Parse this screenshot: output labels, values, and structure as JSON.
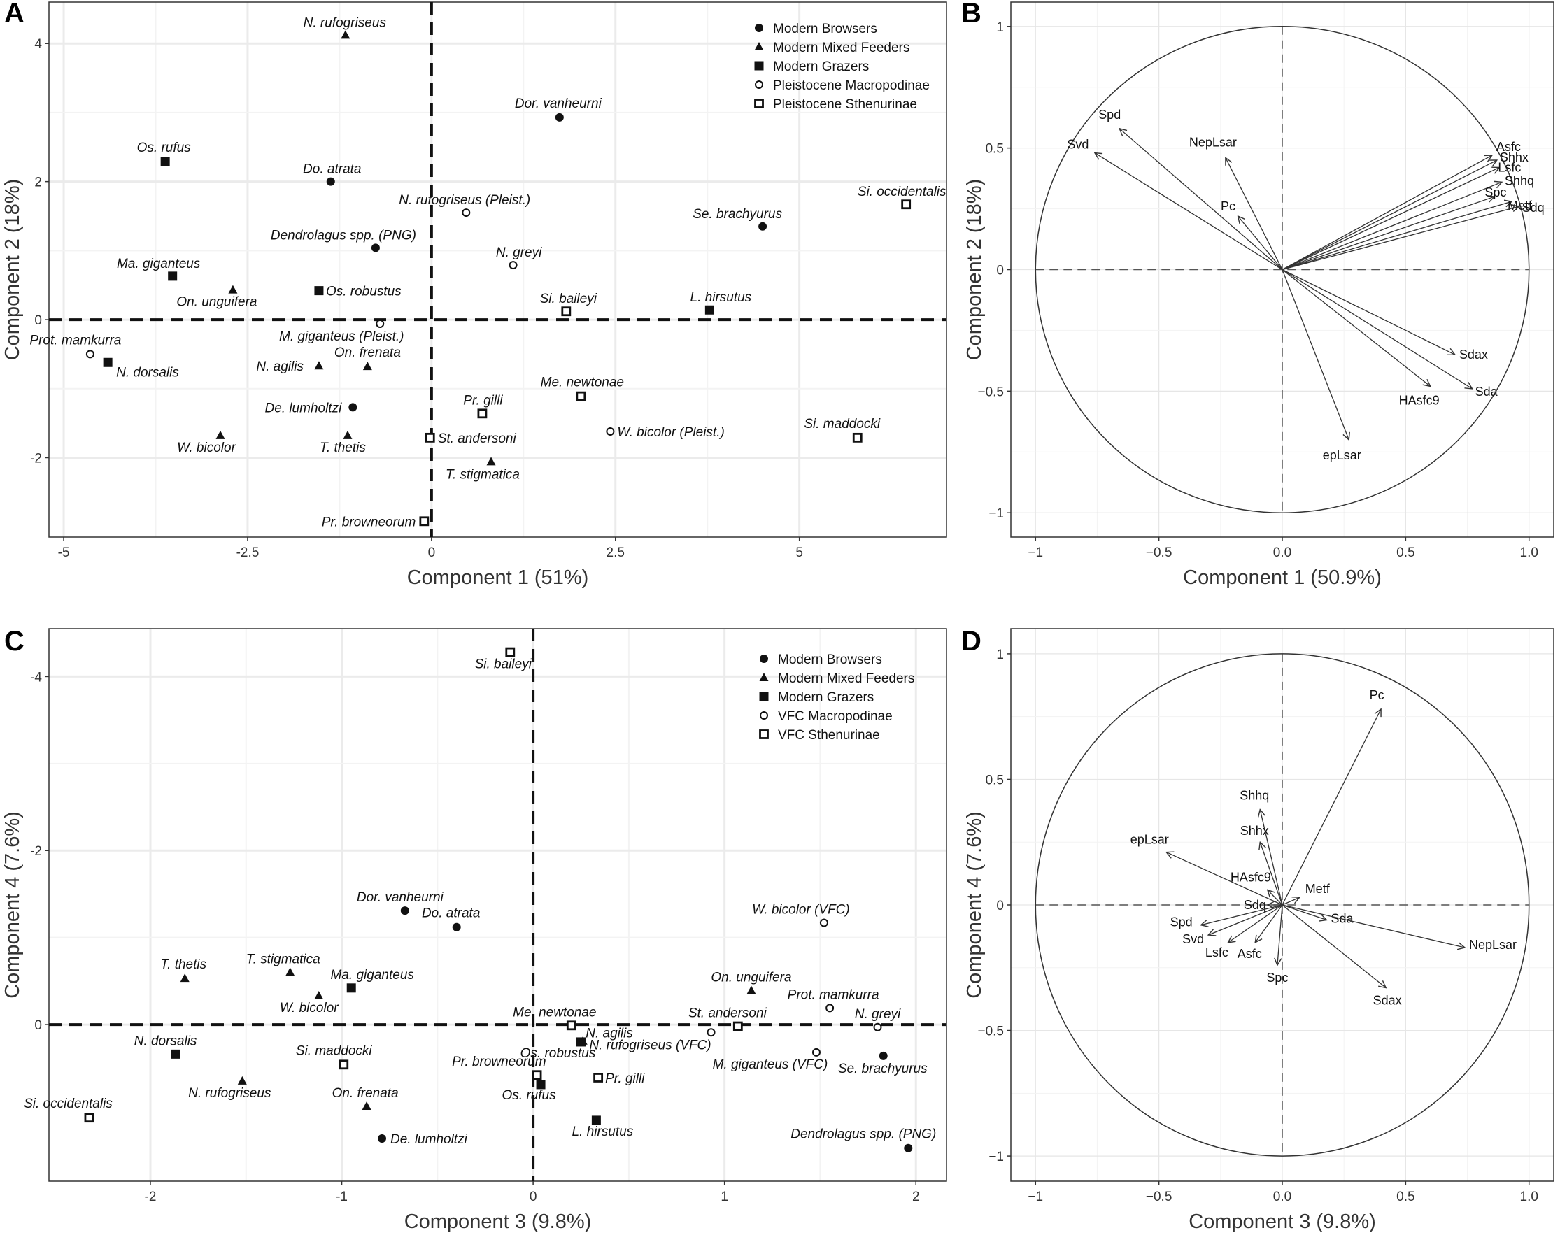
{
  "chart_data": [
    {
      "panel": "A",
      "type": "scatter",
      "xlabel": "Component 1 (51%)",
      "ylabel": "Component 2 (18%)",
      "xlim": [
        -5.2,
        7.0
      ],
      "ylim": [
        -3.15,
        4.6
      ],
      "xticks": [
        {
          "v": -5,
          "t": "-5"
        },
        {
          "v": -2.5,
          "t": "-2.5"
        },
        {
          "v": 0,
          "t": "0"
        },
        {
          "v": 2.5,
          "t": "2.5"
        },
        {
          "v": 5,
          "t": "5"
        }
      ],
      "yticks": [
        {
          "v": -2,
          "t": "-2"
        },
        {
          "v": 0,
          "t": "0"
        },
        {
          "v": 2,
          "t": "2"
        },
        {
          "v": 4,
          "t": "4"
        }
      ],
      "legend": [
        {
          "shape": "circle",
          "label": "Modern Browsers"
        },
        {
          "shape": "triangle",
          "label": "Modern Mixed Feeders"
        },
        {
          "shape": "square",
          "label": "Modern Grazers"
        },
        {
          "shape": "open-circle",
          "label": "Pleistocene Macropodinae"
        },
        {
          "shape": "open-square",
          "label": "Pleistocene Sthenurinae"
        }
      ],
      "points": [
        {
          "label": "N. rufogriseus",
          "x": -1.17,
          "y": 4.12,
          "shape": "triangle"
        },
        {
          "label": "Dor. vanheurni",
          "x": 1.74,
          "y": 2.93,
          "shape": "circle"
        },
        {
          "label": "Os. rufus",
          "x": -3.62,
          "y": 2.29,
          "shape": "square"
        },
        {
          "label": "Do. atrata",
          "x": -1.37,
          "y": 2.0,
          "shape": "circle"
        },
        {
          "label": "N. rufogriseus (Pleist.)",
          "x": 0.47,
          "y": 1.55,
          "shape": "open-circle"
        },
        {
          "label": "Si. occidentalis",
          "x": 6.45,
          "y": 1.67,
          "shape": "open-square"
        },
        {
          "label": "Se. brachyurus",
          "x": 4.5,
          "y": 1.35,
          "shape": "circle"
        },
        {
          "label": "Dendrolagus spp. (PNG)",
          "x": -0.76,
          "y": 1.04,
          "shape": "circle"
        },
        {
          "label": "N. greyi",
          "x": 1.11,
          "y": 0.79,
          "shape": "open-circle"
        },
        {
          "label": "Ma. giganteus",
          "x": -3.52,
          "y": 0.63,
          "shape": "square"
        },
        {
          "label": "On. unguifera",
          "x": -2.7,
          "y": 0.43,
          "shape": "triangle"
        },
        {
          "label": "Os. robustus",
          "x": -1.53,
          "y": 0.42,
          "shape": "square"
        },
        {
          "label": "Si. baileyi",
          "x": 1.83,
          "y": 0.12,
          "shape": "open-square"
        },
        {
          "label": "L. hirsutus",
          "x": 3.78,
          "y": 0.14,
          "shape": "square"
        },
        {
          "label": "M. giganteus (Pleist.)",
          "x": -0.7,
          "y": -0.06,
          "shape": "open-circle"
        },
        {
          "label": "Prot. mamkurra",
          "x": -4.64,
          "y": -0.5,
          "shape": "open-circle"
        },
        {
          "label": "N. dorsalis",
          "x": -4.4,
          "y": -0.62,
          "shape": "square"
        },
        {
          "label": "N. agilis",
          "x": -1.53,
          "y": -0.67,
          "shape": "triangle"
        },
        {
          "label": "On. frenata",
          "x": -0.87,
          "y": -0.68,
          "shape": "triangle"
        },
        {
          "label": "Me. newtonae",
          "x": 2.03,
          "y": -1.11,
          "shape": "open-square"
        },
        {
          "label": "De. lumholtzi",
          "x": -1.07,
          "y": -1.27,
          "shape": "circle"
        },
        {
          "label": "Pr. gilli",
          "x": 0.69,
          "y": -1.36,
          "shape": "open-square"
        },
        {
          "label": "W. bicolor",
          "x": -2.87,
          "y": -1.68,
          "shape": "triangle"
        },
        {
          "label": "T. thetis",
          "x": -1.14,
          "y": -1.68,
          "shape": "triangle"
        },
        {
          "label": "St. andersoni",
          "x": -0.02,
          "y": -1.71,
          "shape": "open-square"
        },
        {
          "label": "W. bicolor (Pleist.)",
          "x": 2.43,
          "y": -1.62,
          "shape": "open-circle"
        },
        {
          "label": "Si. maddocki",
          "x": 5.79,
          "y": -1.71,
          "shape": "open-square"
        },
        {
          "label": "T. stigmatica",
          "x": 0.81,
          "y": -2.06,
          "shape": "triangle"
        },
        {
          "label": "Pr. browneorum",
          "x": -0.1,
          "y": -2.92,
          "shape": "open-square"
        }
      ]
    },
    {
      "panel": "B",
      "type": "biplot",
      "xlabel": "Component 1 (50.9%)",
      "ylabel": "Component 2 (18%)",
      "xlim": [
        -1.1,
        1.1
      ],
      "ylim": [
        -1.1,
        1.1
      ],
      "xticks": [
        {
          "v": -1,
          "t": "−1"
        },
        {
          "v": -0.5,
          "t": "−0.5"
        },
        {
          "v": 0,
          "t": "0.0"
        },
        {
          "v": 0.5,
          "t": "0.5"
        },
        {
          "v": 1,
          "t": "1.0"
        }
      ],
      "yticks": [
        {
          "v": -1,
          "t": "−1"
        },
        {
          "v": -0.5,
          "t": "−0.5"
        },
        {
          "v": 0,
          "t": "0"
        },
        {
          "v": 0.5,
          "t": "0.5"
        },
        {
          "v": 1,
          "t": "1"
        }
      ],
      "vectors": [
        {
          "label": "Spd",
          "x": -0.66,
          "y": 0.58
        },
        {
          "label": "Svd",
          "x": -0.76,
          "y": 0.48
        },
        {
          "label": "NepLsar",
          "x": -0.23,
          "y": 0.46
        },
        {
          "label": "Pc",
          "x": -0.18,
          "y": 0.22
        },
        {
          "label": "Asfc",
          "x": 0.85,
          "y": 0.47
        },
        {
          "label": "Shhx",
          "x": 0.87,
          "y": 0.45
        },
        {
          "label": "Lsfc",
          "x": 0.88,
          "y": 0.42
        },
        {
          "label": "Shhq",
          "x": 0.89,
          "y": 0.36
        },
        {
          "label": "Spc",
          "x": 0.86,
          "y": 0.3
        },
        {
          "label": "Metf",
          "x": 0.93,
          "y": 0.28
        },
        {
          "label": "Sdq",
          "x": 0.96,
          "y": 0.26
        },
        {
          "label": "Sdax",
          "x": 0.7,
          "y": -0.35
        },
        {
          "label": "HAsfc9",
          "x": 0.6,
          "y": -0.48
        },
        {
          "label": "Sda",
          "x": 0.77,
          "y": -0.49
        },
        {
          "label": "epLsar",
          "x": 0.27,
          "y": -0.7
        }
      ]
    },
    {
      "panel": "C",
      "type": "scatter",
      "xlabel": "Component 3 (9.8%)",
      "ylabel": "Component 4 (7.6%)",
      "xlim": [
        -2.53,
        2.16
      ],
      "ylim": [
        1.8,
        -4.55
      ],
      "xticks": [
        {
          "v": -2,
          "t": "-2"
        },
        {
          "v": -1,
          "t": "-1"
        },
        {
          "v": 0,
          "t": "0"
        },
        {
          "v": 1,
          "t": "1"
        },
        {
          "v": 2,
          "t": "2"
        }
      ],
      "yticks": [
        {
          "v": -4,
          "t": "-4"
        },
        {
          "v": -2,
          "t": "-2"
        },
        {
          "v": 0,
          "t": "0"
        }
      ],
      "legend": [
        {
          "shape": "circle",
          "label": "Modern Browsers"
        },
        {
          "shape": "triangle",
          "label": "Modern Mixed Feeders"
        },
        {
          "shape": "square",
          "label": "Modern Grazers"
        },
        {
          "shape": "open-circle",
          "label": "VFC Macropodinae"
        },
        {
          "shape": "open-square",
          "label": "VFC Sthenurinae"
        }
      ],
      "points": [
        {
          "label": "Si. baileyi",
          "x": -0.12,
          "y": -4.28,
          "shape": "open-square"
        },
        {
          "label": "Dor. vanheurni",
          "x": -0.67,
          "y": -1.31,
          "shape": "circle"
        },
        {
          "label": "Do. atrata",
          "x": -0.4,
          "y": -1.12,
          "shape": "circle"
        },
        {
          "label": "W. bicolor (VFC)",
          "x": 1.52,
          "y": -1.17,
          "shape": "open-circle"
        },
        {
          "label": "T. thetis",
          "x": -1.82,
          "y": -0.53,
          "shape": "triangle"
        },
        {
          "label": "T. stigmatica",
          "x": -1.27,
          "y": -0.6,
          "shape": "triangle"
        },
        {
          "label": "Ma. giganteus",
          "x": -0.95,
          "y": -0.42,
          "shape": "square"
        },
        {
          "label": "W. bicolor",
          "x": -1.12,
          "y": -0.33,
          "shape": "triangle"
        },
        {
          "label": "On. unguifera",
          "x": 1.14,
          "y": -0.39,
          "shape": "triangle"
        },
        {
          "label": "Prot. mamkurra",
          "x": 1.55,
          "y": -0.19,
          "shape": "open-circle"
        },
        {
          "label": "N. greyi",
          "x": 1.8,
          "y": 0.03,
          "shape": "open-circle"
        },
        {
          "label": "St. andersoni",
          "x": 1.07,
          "y": 0.02,
          "shape": "open-square"
        },
        {
          "label": "Me. newtonae",
          "x": 0.2,
          "y": 0.01,
          "shape": "open-square"
        },
        {
          "label": "N. agilis",
          "x": 0.26,
          "y": 0.19,
          "shape": "triangle"
        },
        {
          "label": "Os. robustus",
          "x": 0.25,
          "y": 0.2,
          "shape": "square"
        },
        {
          "label": "N. rufogriseus (VFC)",
          "x": 0.93,
          "y": 0.09,
          "shape": "open-circle"
        },
        {
          "label": "M. giganteus (VFC)",
          "x": 1.48,
          "y": 0.32,
          "shape": "open-circle"
        },
        {
          "label": "Se. brachyurus",
          "x": 1.83,
          "y": 0.36,
          "shape": "circle"
        },
        {
          "label": "N. dorsalis",
          "x": -1.87,
          "y": 0.34,
          "shape": "square"
        },
        {
          "label": "Si. maddocki",
          "x": -0.99,
          "y": 0.46,
          "shape": "open-square"
        },
        {
          "label": "Pr. browneorum",
          "x": 0.02,
          "y": 0.58,
          "shape": "open-square"
        },
        {
          "label": "Os. rufus",
          "x": 0.04,
          "y": 0.69,
          "shape": "square"
        },
        {
          "label": "Pr. gilli",
          "x": 0.34,
          "y": 0.61,
          "shape": "open-square"
        },
        {
          "label": "N. rufogriseus",
          "x": -1.52,
          "y": 0.65,
          "shape": "triangle"
        },
        {
          "label": "On. frenata",
          "x": -0.87,
          "y": 0.94,
          "shape": "triangle"
        },
        {
          "label": "Si. occidentalis",
          "x": -2.32,
          "y": 1.07,
          "shape": "open-square"
        },
        {
          "label": "L. hirsutus",
          "x": 0.33,
          "y": 1.1,
          "shape": "square"
        },
        {
          "label": "De. lumholtzi",
          "x": -0.79,
          "y": 1.31,
          "shape": "circle"
        },
        {
          "label": "Dendrolagus spp. (PNG)",
          "x": 1.96,
          "y": 1.42,
          "shape": "circle"
        }
      ]
    },
    {
      "panel": "D",
      "type": "biplot",
      "xlabel": "Component 3 (9.8%)",
      "ylabel": "Component 4 (7.6%)",
      "xlim": [
        -1.1,
        1.1
      ],
      "ylim": [
        -1.1,
        1.1
      ],
      "xticks": [
        {
          "v": -1,
          "t": "−1"
        },
        {
          "v": -0.5,
          "t": "−0.5"
        },
        {
          "v": 0,
          "t": "0.0"
        },
        {
          "v": 0.5,
          "t": "0.5"
        },
        {
          "v": 1,
          "t": "1.0"
        }
      ],
      "yticks": [
        {
          "v": -1,
          "t": "−1"
        },
        {
          "v": -0.5,
          "t": "−0.5"
        },
        {
          "v": 0,
          "t": "0"
        },
        {
          "v": 0.5,
          "t": "0.5"
        },
        {
          "v": 1,
          "t": "1"
        }
      ],
      "vectors": [
        {
          "label": "Pc",
          "x": 0.4,
          "y": 0.78
        },
        {
          "label": "Shhq",
          "x": -0.09,
          "y": 0.38
        },
        {
          "label": "Shhx",
          "x": -0.09,
          "y": 0.25
        },
        {
          "label": "epLsar",
          "x": -0.47,
          "y": 0.21
        },
        {
          "label": "HAsfc9",
          "x": -0.06,
          "y": 0.06
        },
        {
          "label": "Metf",
          "x": 0.07,
          "y": 0.03
        },
        {
          "label": "Sdq",
          "x": -0.06,
          "y": 0.0
        },
        {
          "label": "Sda",
          "x": 0.18,
          "y": -0.06
        },
        {
          "label": "NepLsar",
          "x": 0.74,
          "y": -0.17
        },
        {
          "label": "Spd",
          "x": -0.33,
          "y": -0.08
        },
        {
          "label": "Svd",
          "x": -0.3,
          "y": -0.12
        },
        {
          "label": "Lsfc",
          "x": -0.22,
          "y": -0.15
        },
        {
          "label": "Asfc",
          "x": -0.11,
          "y": -0.15
        },
        {
          "label": "Spc",
          "x": -0.02,
          "y": -0.24
        },
        {
          "label": "Sdax",
          "x": 0.42,
          "y": -0.33
        }
      ]
    }
  ]
}
